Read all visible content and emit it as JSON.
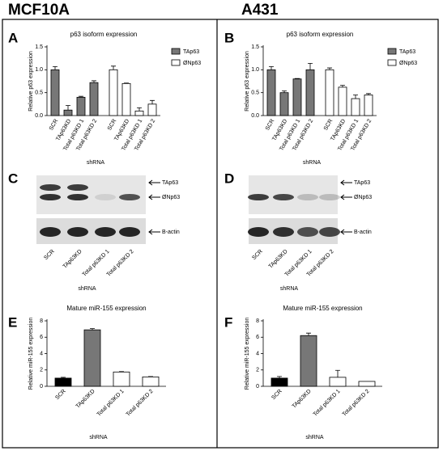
{
  "headers": [
    "MCF10A",
    "A431"
  ],
  "chart_data": [
    {
      "type": "bar",
      "panel": "A",
      "title": "p63 isoform expression",
      "y_label": "Relative p63 expression",
      "x_label": "shRNA",
      "categories": [
        "SCR",
        "TAp63KD",
        "Total p63KD 1",
        "Total p63KD 2",
        "SCR",
        "TAp63KD",
        "Total p63KD 1",
        "Total p63KD 2"
      ],
      "series": [
        {
          "name": "TAp63",
          "color": "#777777",
          "values": [
            1.0,
            0.12,
            0.4,
            0.72,
            null,
            null,
            null,
            null
          ],
          "errors": [
            0.07,
            0.1,
            0.02,
            0.04,
            null,
            null,
            null,
            null
          ]
        },
        {
          "name": "ØNp63",
          "color": "#ffffff",
          "values": [
            null,
            null,
            null,
            null,
            1.0,
            0.7,
            0.1,
            0.25
          ],
          "errors": [
            null,
            null,
            null,
            null,
            0.08,
            0.01,
            0.07,
            0.08
          ]
        }
      ],
      "ylim": [
        0,
        1.5
      ],
      "yticks": [
        {
          "value": 0,
          "label": "0.0"
        },
        {
          "value": 0.5,
          "label": "0.5"
        },
        {
          "value": 1,
          "label": "1.0"
        },
        {
          "value": 1.5,
          "label": "1.5"
        }
      ]
    },
    {
      "type": "bar",
      "panel": "B",
      "title": "p63 isoform expression",
      "y_label": "Relative p63 expression",
      "x_label": "shRNA",
      "categories": [
        "SCR",
        "TAp63KD",
        "Total p63KD 1",
        "Total p63KD 2",
        "SCR",
        "TAp63KD",
        "Total p63KD 1",
        "Total p63KD 2"
      ],
      "series": [
        {
          "name": "TAp63",
          "color": "#777777",
          "values": [
            1.0,
            0.5,
            0.8,
            1.0,
            null,
            null,
            null,
            null
          ],
          "errors": [
            0.07,
            0.04,
            0.01,
            0.14,
            null,
            null,
            null,
            null
          ]
        },
        {
          "name": "ØNp63",
          "color": "#ffffff",
          "values": [
            null,
            null,
            null,
            null,
            1.0,
            0.62,
            0.37,
            0.45
          ],
          "errors": [
            null,
            null,
            null,
            null,
            0.04,
            0.04,
            0.08,
            0.03
          ]
        }
      ],
      "ylim": [
        0,
        1.5
      ],
      "yticks": [
        {
          "value": 0,
          "label": "0.0"
        },
        {
          "value": 0.5,
          "label": "0.5"
        },
        {
          "value": 1,
          "label": "1.0"
        },
        {
          "value": 1.5,
          "label": "1.5"
        }
      ]
    },
    {
      "type": "bar",
      "panel": "E",
      "title": "Mature miR-155 expression",
      "y_label": "Relative miR-155 expression",
      "x_label": "shRNA",
      "categories": [
        "SCR",
        "TAp63KD",
        "Total p63KD 1",
        "Total p63KD 2"
      ],
      "values": [
        1.0,
        6.9,
        1.75,
        1.15
      ],
      "errors": [
        0.1,
        0.15,
        0.05,
        0.05
      ],
      "colors": [
        "#000000",
        "#777777",
        "#ffffff",
        "#ffffff"
      ],
      "ylim": [
        0,
        8
      ],
      "yticks": [
        0,
        2,
        4,
        6,
        8
      ]
    },
    {
      "type": "bar",
      "panel": "F",
      "title": "Mature miR-155 expression",
      "y_label": "Relative miR-155 expression",
      "x_label": "shRNA",
      "categories": [
        "SCR",
        "TAp63KD",
        "Total p63KD 1",
        "Total p63KD 2"
      ],
      "values": [
        1.0,
        6.2,
        1.1,
        0.6
      ],
      "errors": [
        0.2,
        0.3,
        0.85,
        null
      ],
      "colors": [
        "#000000",
        "#777777",
        "#ffffff",
        "#ffffff"
      ],
      "ylim": [
        0,
        8
      ],
      "yticks": [
        0,
        2,
        4,
        6,
        8
      ]
    }
  ],
  "blots": [
    {
      "panel": "C",
      "bands": [
        "TAp63",
        "ØNp63",
        "B-actin"
      ],
      "lanes": [
        "SCR",
        "TAp63KD",
        "Total p63KD 1",
        "Total p63KD 2"
      ],
      "x_label": "shRNA"
    },
    {
      "panel": "D",
      "bands": [
        "TAp63",
        "ØNp63",
        "B-actin"
      ],
      "lanes": [
        "SCR",
        "TAp63KD",
        "Total p63KD 1",
        "Total p63KD 2"
      ],
      "x_label": "shRNA"
    }
  ]
}
